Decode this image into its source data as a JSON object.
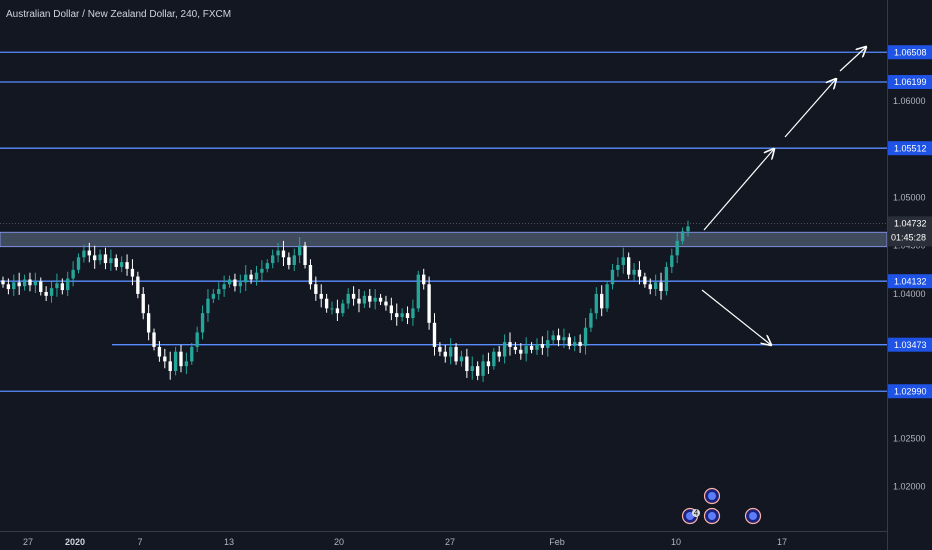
{
  "chart_data": {
    "type": "candlestick",
    "title": "Australian Dollar / New Zealand Dollar, 240, FXCM",
    "ylim": [
      1.0155,
      1.0705
    ],
    "y_ticks": [
      1.065,
      1.06,
      1.05,
      1.045,
      1.04,
      1.025,
      1.02
    ],
    "y_tick_labels": [
      "",
      "1.06000",
      "1.05000",
      "1.04500",
      "1.04000",
      "1.02500",
      "1.02000"
    ],
    "x_tick_labels": [
      "27",
      "2020",
      "7",
      "13",
      "20",
      "27",
      "Feb",
      "10",
      "17"
    ],
    "horizontal_levels": [
      {
        "label": "1.06508",
        "value": 1.06508
      },
      {
        "label": "1.06199",
        "value": 1.06199
      },
      {
        "label": "1.05512",
        "value": 1.05512
      },
      {
        "label": "1.04132",
        "value": 1.04132
      },
      {
        "label": "1.03473",
        "value": 1.03473
      },
      {
        "label": "1.02990",
        "value": 1.0299
      }
    ],
    "zone": {
      "from": 1.0449,
      "to": 1.0464
    },
    "current_price": {
      "label": "1.04732",
      "value": 1.04732
    },
    "countdown": "01:45:28",
    "closes": [
      1.041,
      1.0405,
      1.0412,
      1.0408,
      1.0415,
      1.0409,
      1.0413,
      1.0402,
      1.0398,
      1.0406,
      1.0411,
      1.0404,
      1.0416,
      1.0425,
      1.0438,
      1.0445,
      1.044,
      1.0435,
      1.0441,
      1.0432,
      1.0437,
      1.0428,
      1.0433,
      1.0426,
      1.0418,
      1.04,
      1.038,
      1.036,
      1.0345,
      1.0335,
      1.033,
      1.032,
      1.034,
      1.0325,
      1.033,
      1.0345,
      1.036,
      1.038,
      1.0395,
      1.04,
      1.0405,
      1.041,
      1.0415,
      1.0408,
      1.0412,
      1.042,
      1.0415,
      1.0422,
      1.0426,
      1.0432,
      1.044,
      1.0445,
      1.0438,
      1.043,
      1.044,
      1.045,
      1.043,
      1.041,
      1.04,
      1.0395,
      1.0385,
      1.0385,
      1.038,
      1.039,
      1.04,
      1.0395,
      1.039,
      1.0398,
      1.0392,
      1.0396,
      1.0392,
      1.0388,
      1.038,
      1.0376,
      1.038,
      1.0375,
      1.0385,
      1.042,
      1.041,
      1.037,
      1.0345,
      1.034,
      1.0335,
      1.0345,
      1.033,
      1.0335,
      1.032,
      1.0325,
      1.0315,
      1.033,
      1.0325,
      1.034,
      1.0335,
      1.035,
      1.0345,
      1.0342,
      1.0338,
      1.0346,
      1.0342,
      1.0348,
      1.0344,
      1.0352,
      1.0357,
      1.0352,
      1.0355,
      1.0346,
      1.035,
      1.0346,
      1.0365,
      1.038,
      1.04,
      1.0385,
      1.041,
      1.0425,
      1.043,
      1.0438,
      1.042,
      1.0425,
      1.0418,
      1.041,
      1.0405,
      1.0412,
      1.0403,
      1.0428,
      1.044,
      1.0455,
      1.0465,
      1.047
    ]
  },
  "events": [
    {
      "label": "4"
    },
    {
      "label": ""
    },
    {
      "label": ""
    },
    {
      "label": ""
    }
  ],
  "colors": {
    "background": "#131722",
    "level_line": "#2962ff",
    "up": "#26a69a",
    "down": "#ffffff",
    "zone": "#4a5568",
    "arrow": "#ffffff",
    "axis_border": "#363a45"
  }
}
